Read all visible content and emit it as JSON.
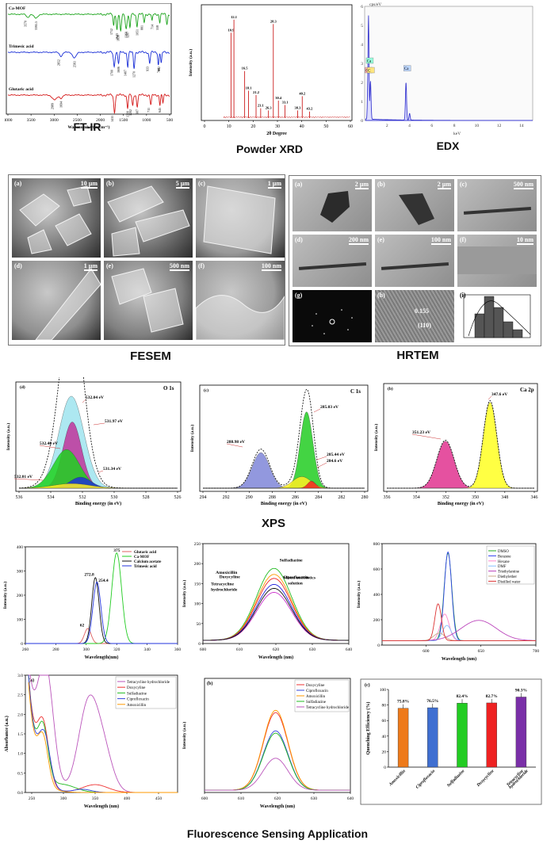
{
  "sections": {
    "ftir": "FT-IR",
    "xrd": "Powder XRD",
    "edx": "EDX",
    "fesem": "FESEM",
    "hrtem": "HRTEM",
    "xps": "XPS",
    "fluor": "Fluorescence Sensing Application"
  },
  "colors": {
    "camof": "#1aa31a",
    "trimesic": "#1a2fd6",
    "glutaric": "#d41a1a",
    "xrd": "#cc1f1f",
    "edx": "#3a3ad0",
    "o1s_pink": "#c0349b",
    "green": "#1fd11f",
    "blue_peak": "#1f33d6",
    "cyan": "#9fe4ef",
    "c1s_blue": "#7f86d8",
    "c1s_green": "#22cc22",
    "yellow": "#ffee22",
    "c1s_red": "#ee2222",
    "ca_pink": "#e0338f",
    "ca_yellow": "#ffff22"
  },
  "chart_data": [
    {
      "id": "ftir",
      "type": "line",
      "xlabel": "Wavenumber(in cm⁻¹)",
      "xlim": [
        4000,
        500
      ],
      "xticks": [
        "4000",
        "3500",
        "3000",
        "2500",
        "2000",
        "1500",
        "1000",
        "500"
      ],
      "series": [
        {
          "name": "Ca-MOF",
          "peak_labels": [
            "3570",
            "3395.5",
            "1712",
            "1643",
            "1636",
            "1360",
            "1207",
            "1051",
            "881",
            "714",
            "558"
          ]
        },
        {
          "name": "Trimesic acid",
          "peak_labels": [
            "2852",
            "2561",
            "1700",
            "1606",
            "1407",
            "1270",
            "933",
            "744",
            "682"
          ]
        },
        {
          "name": "Glutaric acid",
          "peak_labels": [
            "2989",
            "1694",
            "1411",
            "1300",
            "1202",
            "907",
            "711",
            "645"
          ]
        }
      ]
    },
    {
      "id": "xrd",
      "type": "bar",
      "xlabel": "2θ Degree",
      "ylabel": "Intensity (a.u.)",
      "xlim": [
        0,
        60
      ],
      "xticks": [
        "0",
        "10",
        "20",
        "30",
        "40",
        "50",
        "60"
      ],
      "peaks": [
        {
          "x": 10.9,
          "label": "10.9",
          "h": 0.78
        },
        {
          "x": 12.1,
          "label": "12.1",
          "h": 0.9
        },
        {
          "x": 16.5,
          "label": "16.5",
          "h": 0.43
        },
        {
          "x": 18.1,
          "label": "18.1",
          "h": 0.25
        },
        {
          "x": 21.2,
          "label": "21.2",
          "h": 0.21
        },
        {
          "x": 23.1,
          "label": "23.1",
          "h": 0.09
        },
        {
          "x": 26.3,
          "label": "26.3",
          "h": 0.07
        },
        {
          "x": 28.3,
          "label": "28.3",
          "h": 0.86
        },
        {
          "x": 30.4,
          "label": "30.4",
          "h": 0.16
        },
        {
          "x": 33.1,
          "label": "33.1",
          "h": 0.12
        },
        {
          "x": 38.3,
          "label": "38.3",
          "h": 0.07
        },
        {
          "x": 40.2,
          "label": "40.2",
          "h": 0.2
        },
        {
          "x": 43.2,
          "label": "43.2",
          "h": 0.06
        }
      ]
    },
    {
      "id": "edx",
      "type": "bar",
      "xlabel": "keV",
      "ylabel": "cps/eV",
      "xlim": [
        0,
        15
      ],
      "ylim": [
        0,
        6
      ],
      "xticks": [
        "2",
        "4",
        "6",
        "8",
        "10",
        "12",
        "14"
      ],
      "yticks": [
        "0",
        "1",
        "2",
        "3",
        "4",
        "5",
        "6"
      ],
      "element_labels": [
        "Ca",
        "O",
        "C",
        "Ca"
      ]
    },
    {
      "id": "o1s",
      "type": "area",
      "panel_label": "(d)",
      "title": "O 1s",
      "xlabel": "Binding energy (in eV)",
      "ylabel": "Intensity (a.u.)",
      "xlim": [
        536,
        524
      ],
      "xticks": [
        "536",
        "534",
        "532",
        "530",
        "528",
        "526"
      ],
      "annotations": [
        "532.04 eV",
        "531.97 eV",
        "532.40 eV",
        "531.34 eV",
        "532.01 eV"
      ]
    },
    {
      "id": "c1s",
      "type": "area",
      "panel_label": "(c)",
      "title": "C 1s",
      "xlabel": "Binding energy (in eV)",
      "ylabel": "Intensity (a.u.)",
      "xlim": [
        294,
        280
      ],
      "xticks": [
        "294",
        "292",
        "290",
        "288",
        "286",
        "284",
        "282",
        "280"
      ],
      "annotations": [
        "285.03 eV",
        "288.98 eV",
        "285.44 eV",
        "284.6 eV"
      ]
    },
    {
      "id": "ca2p",
      "type": "area",
      "panel_label": "(b)",
      "title": "Ca 2p",
      "xlabel": "Binding energy (in eV)",
      "ylabel": "Intensity (a.u.)",
      "xlim": [
        356,
        344
      ],
      "xticks": [
        "356",
        "354",
        "352",
        "350",
        "348",
        "346"
      ],
      "annotations": [
        "347.6 eV",
        "351.23 eV"
      ]
    },
    {
      "id": "excitation",
      "type": "line",
      "xlabel": "Wavelength(nm)",
      "ylabel": "Intensity (a.u.)",
      "xlim": [
        260,
        360
      ],
      "ylim": [
        0,
        400
      ],
      "xticks": [
        "260",
        "280",
        "300",
        "320",
        "340",
        "360"
      ],
      "yticks": [
        "0",
        "100",
        "200",
        "300",
        "400"
      ],
      "peak_labels": [
        "375",
        "272.8",
        "254.4",
        "62"
      ],
      "series": [
        {
          "name": "Glutaric acid",
          "color": "#e06060",
          "center": 301,
          "height": 62,
          "width": 2.2
        },
        {
          "name": "Ca-MOF",
          "color": "#22cc22",
          "center": 320,
          "height": 375,
          "width": 3.2
        },
        {
          "name": "Calcium acetate",
          "color": "#111111",
          "center": 306,
          "height": 272.8,
          "width": 2.4
        },
        {
          "name": "Trimesic acid",
          "color": "#2233dd",
          "center": 307,
          "height": 254.4,
          "width": 2.6
        }
      ]
    },
    {
      "id": "antibiotics",
      "type": "line",
      "xlabel": "Wavelength (nm)",
      "ylabel": "Intensity (a.u.)",
      "xlim": [
        600,
        640
      ],
      "ylim": [
        0,
        250
      ],
      "xticks": [
        "600",
        "610",
        "620",
        "630",
        "640"
      ],
      "yticks": [
        "0",
        "50",
        "100",
        "150",
        "200",
        "250"
      ],
      "legend_labels": [
        "Sulfadiazine",
        "Amoxicillin",
        "Ciprofloxacin",
        "Doxycyline",
        "Tetracycline hydrochloride",
        "Mixed antibiotics solution"
      ],
      "series": [
        {
          "name": "Sulfadiazine",
          "color": "#22bb22",
          "height": 180
        },
        {
          "name": "Amoxicillin",
          "color": "#ff9900",
          "height": 165
        },
        {
          "name": "Ciprofloxacin",
          "color": "#ee2222",
          "height": 155
        },
        {
          "name": "Doxycyline",
          "color": "#2222dd",
          "height": 140
        },
        {
          "name": "Tetracycline hydrochloride",
          "color": "#cc33cc",
          "height": 120
        },
        {
          "name": "Mixed antibiotics solution",
          "color": "#111111",
          "height": 130
        }
      ]
    },
    {
      "id": "solvents",
      "type": "line",
      "xlabel": "Wavelength (nm)",
      "ylabel": "Intensity (a.u.)",
      "xlim": [
        560,
        700
      ],
      "ylim": [
        0,
        800
      ],
      "xticks": [
        "600",
        "650",
        "700"
      ],
      "yticks": [
        "0",
        "200",
        "400",
        "600",
        "800"
      ],
      "series": [
        {
          "name": "DMSO",
          "color": "#22aa22",
          "center": 620,
          "height": 690,
          "width": 3.5
        },
        {
          "name": "Benzene",
          "color": "#3344ee",
          "center": 620,
          "height": 700,
          "width": 3.3
        },
        {
          "name": "Hexane",
          "color": "#ff88cc",
          "center": 617,
          "height": 210,
          "width": 4
        },
        {
          "name": "DMF",
          "color": "#88c0ff",
          "center": 619,
          "height": 120,
          "width": 4
        },
        {
          "name": "Triethylamine",
          "color": "#bb44bb",
          "center": 648,
          "height": 160,
          "width": 16
        },
        {
          "name": "Diethylether",
          "color": "#ccaa88",
          "center": 612,
          "height": 60,
          "width": 5
        },
        {
          "name": "Distilled water",
          "color": "#dd3333",
          "center": 611,
          "height": 290,
          "width": 3
        }
      ]
    },
    {
      "id": "absorbance",
      "type": "line",
      "panel_label": "(a)",
      "xlabel": "Wavelength (nm)",
      "ylabel": "Absorbance (a.u.)",
      "xlim": [
        240,
        480
      ],
      "ylim": [
        0,
        3.0
      ],
      "xticks": [
        "250",
        "300",
        "350",
        "400",
        "450"
      ],
      "yticks": [
        "0.0",
        "0.5",
        "1.0",
        "1.5",
        "2.0",
        "2.5",
        "3.0"
      ],
      "series": [
        {
          "name": "Tetracycline hydrochloride",
          "color": "#bb55bb"
        },
        {
          "name": "Doxycyline",
          "color": "#ee3333"
        },
        {
          "name": "Sulfadiazine",
          "color": "#22bb22"
        },
        {
          "name": "Ciprofloxacin",
          "color": "#3344dd"
        },
        {
          "name": "Amoxicillin",
          "color": "#ff9900"
        }
      ]
    },
    {
      "id": "quench_spectra",
      "type": "line",
      "panel_label": "(b)",
      "xlabel": "Wavelength (nm)",
      "ylabel": "Intensity (a.u.)",
      "xlim": [
        600,
        640
      ],
      "xticks": [
        "600",
        "610",
        "620",
        "630",
        "640"
      ],
      "series": [
        {
          "name": "Doxycyline",
          "color": "#ee3333",
          "height": 68
        },
        {
          "name": "Ciprofloxacin",
          "color": "#3344dd",
          "height": 52
        },
        {
          "name": "Amoxicillin",
          "color": "#ff9900",
          "height": 70
        },
        {
          "name": "Sulfadiazine",
          "color": "#22bb22",
          "height": 50
        },
        {
          "name": "Tetracycline hydrochloride",
          "color": "#bb55bb",
          "height": 28
        }
      ]
    },
    {
      "id": "quenching",
      "type": "bar",
      "panel_label": "(c)",
      "ylabel": "Quenching Efficiency (%)",
      "ylim": [
        0,
        100
      ],
      "yticks": [
        "0",
        "20",
        "40",
        "60",
        "80",
        "100"
      ],
      "categories": [
        "Amoxicillin",
        "Ciprofloxacin",
        "Sulfadiazine",
        "Doxycycline",
        "Tetracycline hydrochloride"
      ],
      "values": [
        75.8,
        76.5,
        82.4,
        82.7,
        90.3
      ],
      "value_labels": [
        "75.8%",
        "76.5%",
        "82.4%",
        "82.7%",
        "90.3%"
      ],
      "bar_colors": [
        "#ee7a1a",
        "#3f6fd1",
        "#22cc22",
        "#ee2222",
        "#7a2fa8"
      ]
    }
  ],
  "fesem": {
    "tiles": [
      {
        "label": "(a)",
        "scale": "10 µm"
      },
      {
        "label": "(b)",
        "scale": "5 µm"
      },
      {
        "label": "(c)",
        "scale": "1 µm"
      },
      {
        "label": "(d)",
        "scale": "1 µm"
      },
      {
        "label": "(e)",
        "scale": "500 nm"
      },
      {
        "label": "(f)",
        "scale": "100 nm"
      }
    ]
  },
  "hrtem": {
    "tiles": [
      {
        "label": "(a)",
        "scale": "2 µm"
      },
      {
        "label": "(b)",
        "scale": "2 µm"
      },
      {
        "label": "(c)",
        "scale": "500 nm"
      },
      {
        "label": "(d)",
        "scale": "200 nm"
      },
      {
        "label": "(e)",
        "scale": "100 nm"
      },
      {
        "label": "(f)",
        "scale": "10 nm"
      },
      {
        "label": "(g)",
        "scale": ""
      },
      {
        "label": "(h)",
        "scale": ""
      },
      {
        "label": "(i)",
        "scale": ""
      }
    ],
    "lattice_values": [
      "0.155",
      "(110)"
    ]
  }
}
